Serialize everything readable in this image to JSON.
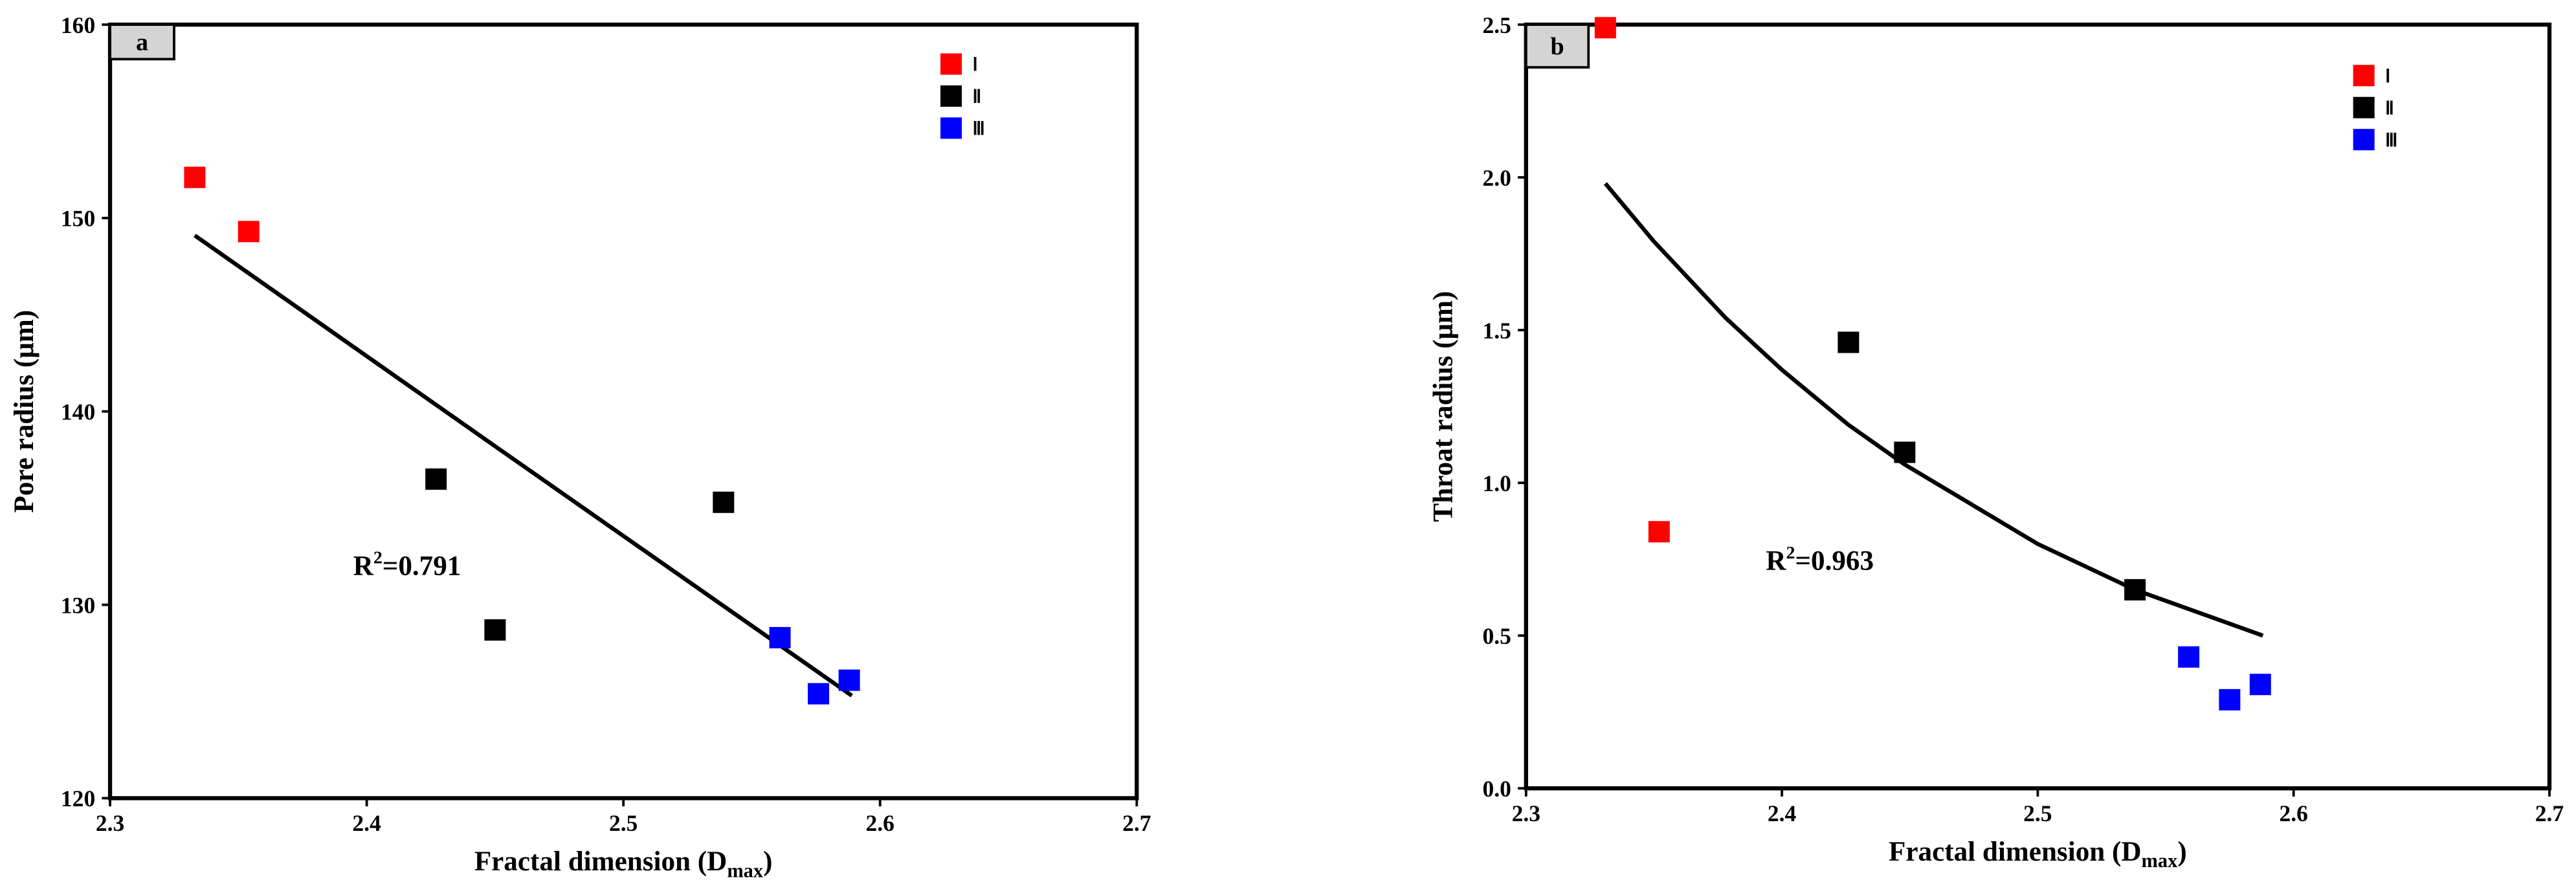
{
  "chart_data": [
    {
      "type": "scatter",
      "panel": "a",
      "xlabel": [
        "Fractal dimension (D",
        "max",
        ")"
      ],
      "ylabel": "Pore radius (μm)",
      "annotation": [
        "R",
        "2",
        "=0.791"
      ],
      "xlim": [
        2.3,
        2.7
      ],
      "xticks": [
        2.3,
        2.4,
        2.5,
        2.6,
        2.7
      ],
      "ylim": [
        120,
        160
      ],
      "yticks": [
        120,
        130,
        140,
        150,
        160
      ],
      "series": [
        {
          "name": "Ⅰ",
          "color": "#ff0000",
          "x": [
            2.333,
            2.354
          ],
          "values": [
            152.1,
            149.3
          ]
        },
        {
          "name": "Ⅱ",
          "color": "#000000",
          "x": [
            2.427,
            2.45,
            2.539
          ],
          "values": [
            136.5,
            128.7,
            135.3
          ]
        },
        {
          "name": "Ⅲ",
          "color": "#0000ff",
          "x": [
            2.561,
            2.576,
            2.588
          ],
          "values": [
            128.3,
            125.4,
            126.1
          ]
        }
      ],
      "fit": {
        "color": "#000000",
        "x": [
          2.333,
          2.45,
          2.589
        ],
        "values": [
          149.1,
          138.2,
          125.3
        ]
      }
    },
    {
      "type": "scatter",
      "panel": "b",
      "xlabel": [
        "Fractal dimension (D",
        "max",
        ")"
      ],
      "ylabel": "Throat radius (μm)",
      "annotation": [
        "R",
        "2",
        "=0.963"
      ],
      "xlim": [
        2.3,
        2.7
      ],
      "xticks": [
        2.3,
        2.4,
        2.5,
        2.6,
        2.7
      ],
      "ylim": [
        0,
        2.5
      ],
      "yticks": [
        {
          "value": 0,
          "label": "0.0"
        },
        0.5,
        {
          "value": 1,
          "label": "1.0"
        },
        1.5,
        {
          "value": 2,
          "label": "2.0"
        },
        2.5
      ],
      "series": [
        {
          "name": "Ⅰ",
          "color": "#ff0000",
          "x": [
            2.331,
            2.352
          ],
          "values": [
            2.49,
            0.84
          ]
        },
        {
          "name": "Ⅱ",
          "color": "#000000",
          "x": [
            2.426,
            2.448,
            2.538
          ],
          "values": [
            1.46,
            1.1,
            0.65
          ]
        },
        {
          "name": "Ⅲ",
          "color": "#0000ff",
          "x": [
            2.559,
            2.575,
            2.587
          ],
          "values": [
            0.43,
            0.29,
            0.34
          ]
        }
      ],
      "fit": {
        "color": "#000000",
        "x": [
          2.331,
          2.35,
          2.378,
          2.4,
          2.426,
          2.448,
          2.5,
          2.538,
          2.588
        ],
        "values": [
          1.98,
          1.79,
          1.54,
          1.37,
          1.19,
          1.06,
          0.8,
          0.65,
          0.5
        ]
      }
    }
  ]
}
